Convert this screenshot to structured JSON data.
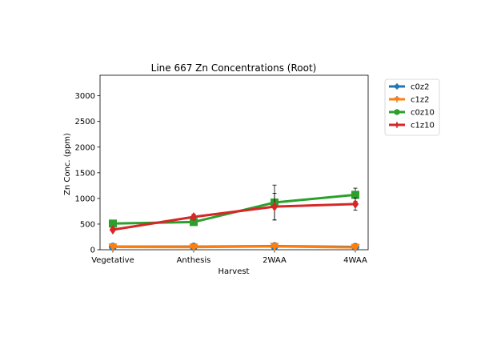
{
  "chart_data": {
    "type": "line",
    "title": "Line 667 Zn Concentrations (Root)",
    "xlabel": "Harvest",
    "ylabel": "Zn Conc. (ppm)",
    "categories": [
      "Vegetative",
      "Anthesis",
      "2WAA",
      "4WAA"
    ],
    "ylim": [
      0,
      3400
    ],
    "yticks": [
      0,
      500,
      1000,
      1500,
      2000,
      2500,
      3000
    ],
    "grid": false,
    "legend_position": "outside-right",
    "series": [
      {
        "name": "c0z2",
        "color": "#1f77b4",
        "marker": "circle",
        "values": [
          60,
          60,
          70,
          55
        ],
        "err": [
          10,
          8,
          12,
          8
        ]
      },
      {
        "name": "c1z2",
        "color": "#ff7f0e",
        "marker": "triangle-down",
        "values": [
          55,
          50,
          65,
          45
        ],
        "err": [
          8,
          8,
          10,
          6
        ]
      },
      {
        "name": "c0z10",
        "color": "#2ca02c",
        "marker": "square",
        "values": [
          510,
          540,
          920,
          1070
        ],
        "err": [
          30,
          40,
          340,
          130
        ]
      },
      {
        "name": "c1z10",
        "color": "#d62728",
        "marker": "diamond",
        "values": [
          390,
          640,
          840,
          890
        ],
        "err": [
          30,
          50,
          260,
          120
        ]
      }
    ]
  }
}
